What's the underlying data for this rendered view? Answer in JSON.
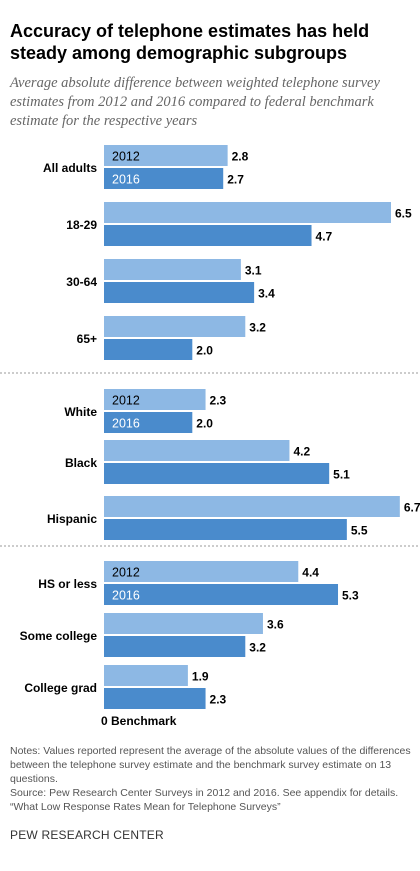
{
  "title": "Accuracy of telephone estimates has held steady among demographic subgroups",
  "subtitle": "Average absolute difference between weighted telephone survey estimates from 2012 and 2016 compared to federal benchmark estimate for the respective years",
  "colors": {
    "bar_2012": "#8db8e4",
    "bar_2016": "#4a8bcc",
    "divider": "#999999"
  },
  "chart_data": {
    "type": "bar",
    "orientation": "horizontal",
    "series": [
      {
        "name": "2012",
        "values": [
          2.8,
          6.5,
          3.1,
          3.2,
          2.3,
          4.2,
          6.7,
          4.4,
          3.6,
          1.9
        ]
      },
      {
        "name": "2016",
        "values": [
          2.7,
          4.7,
          3.4,
          2.0,
          2.0,
          5.1,
          5.5,
          5.3,
          3.2,
          2.3
        ]
      }
    ],
    "categories": [
      "All adults",
      "18-29",
      "30-64",
      "65+",
      "White",
      "Black",
      "Hispanic",
      "HS or less",
      "Some college",
      "College grad"
    ],
    "groups": [
      {
        "categories": [
          "All adults",
          "18-29",
          "30-64",
          "65+"
        ]
      },
      {
        "categories": [
          "White",
          "Black",
          "Hispanic"
        ]
      },
      {
        "categories": [
          "HS or less",
          "Some college",
          "College grad"
        ]
      }
    ],
    "value_labels_2012": [
      "2.8",
      "6.5",
      "3.1",
      "3.2",
      "2.3",
      "4.2",
      "6.7",
      "4.4",
      "3.6",
      "1.9"
    ],
    "value_labels_2016": [
      "2.7",
      "4.7",
      "3.4",
      "2.0",
      "2.0",
      "5.1",
      "5.5",
      "5.3",
      "3.2",
      "2.3"
    ],
    "legend_in_bars": [
      0,
      4,
      7
    ],
    "xlim": [
      0,
      6.7
    ],
    "axis_label": "0 Benchmark",
    "grid": false
  },
  "notes": [
    "Notes: Values reported represent the average of the absolute values of the differences between the telephone survey estimate and the benchmark survey estimate on 13 questions.",
    "Source: Pew Research Center Surveys in 2012 and 2016. See appendix for details.",
    "“What Low Response Rates Mean for Telephone Surveys”"
  ],
  "brand": "PEW RESEARCH CENTER"
}
